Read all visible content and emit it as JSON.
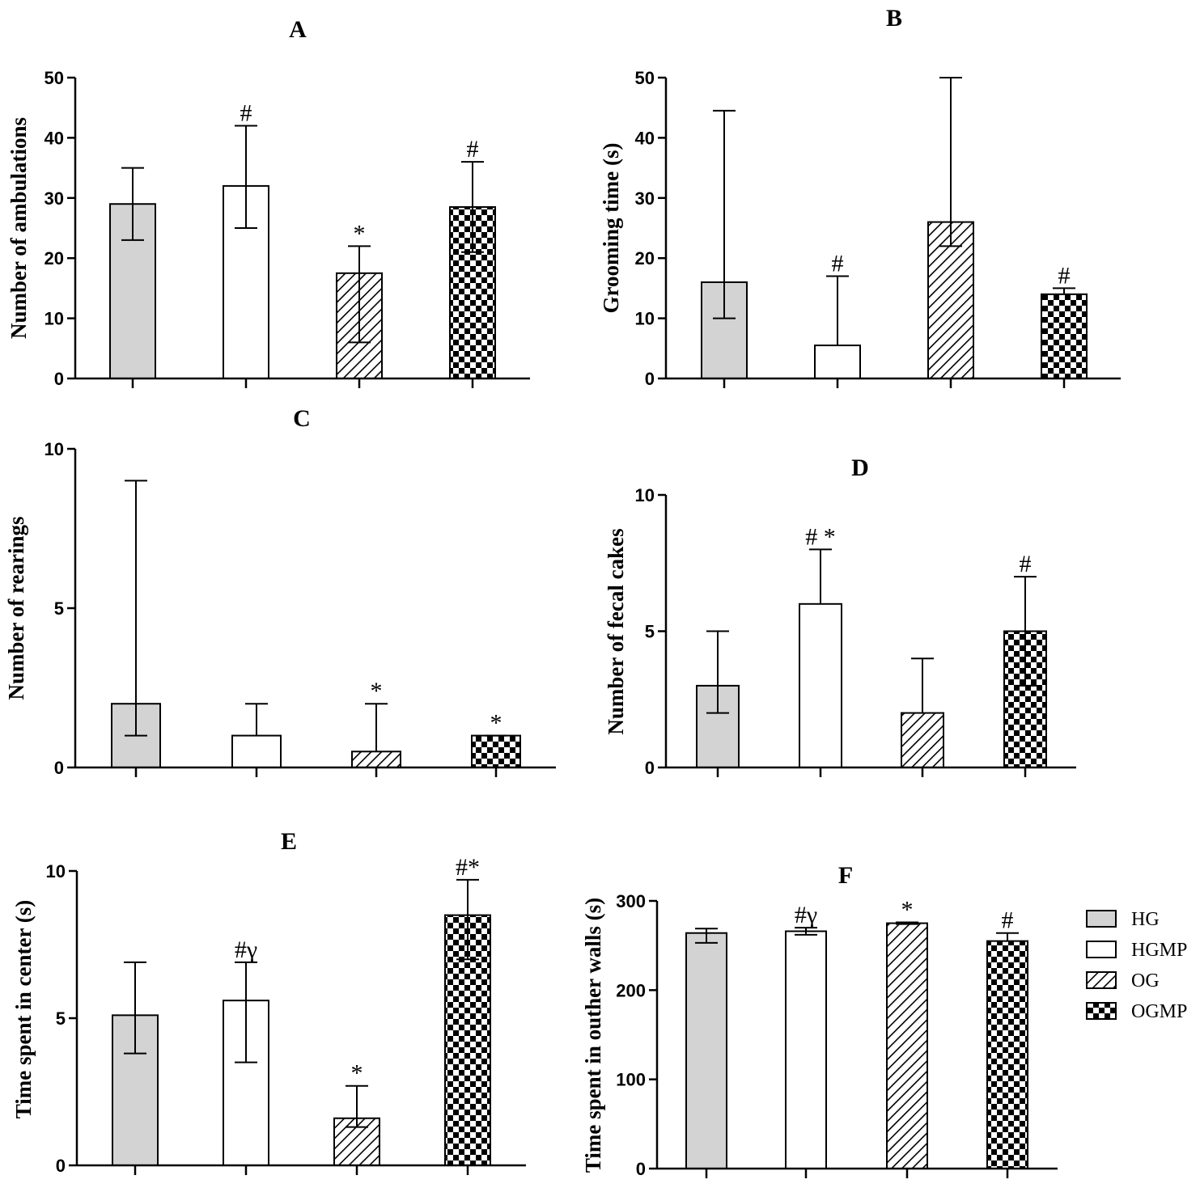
{
  "groups": [
    "HG",
    "HGMP",
    "OG",
    "OGMP"
  ],
  "fills": {
    "HG": "#d3d3d3",
    "HGMP": "#ffffff",
    "OG": "hatch",
    "OGMP": "checker"
  },
  "legend": {
    "items": [
      {
        "label": "HG",
        "fill": "HG"
      },
      {
        "label": "HGMP",
        "fill": "HGMP"
      },
      {
        "label": "OG",
        "fill": "OG"
      },
      {
        "label": "OGMP",
        "fill": "OGMP"
      }
    ]
  },
  "chart_data": [
    {
      "panel": "A",
      "type": "bar",
      "title": "A",
      "ylabel": "Number of ambulations",
      "ylim": [
        0,
        50
      ],
      "yticks": [
        "0",
        "10",
        "20",
        "30",
        "40",
        "50"
      ],
      "categories": [
        "HG",
        "HGMP",
        "OG",
        "OGMP"
      ],
      "values": [
        29,
        32,
        17.5,
        28.5
      ],
      "err_high": [
        35,
        42,
        22,
        36
      ],
      "err_low": [
        23,
        25,
        6,
        21
      ],
      "annotations": [
        "",
        "#",
        "*",
        "#"
      ]
    },
    {
      "panel": "B",
      "type": "bar",
      "title": "B",
      "ylabel": "Grooming time (s)",
      "ylim": [
        0,
        50
      ],
      "yticks": [
        "0",
        "10",
        "20",
        "30",
        "40",
        "50"
      ],
      "categories": [
        "HG",
        "HGMP",
        "OG",
        "OGMP"
      ],
      "values": [
        16,
        5.5,
        26,
        14
      ],
      "err_high": [
        44.5,
        17,
        50,
        15
      ],
      "err_low": [
        10,
        5.5,
        22,
        14
      ],
      "annotations": [
        "",
        "#",
        "",
        "#"
      ]
    },
    {
      "panel": "C",
      "type": "bar",
      "title": "C",
      "ylabel": "Number of rearings",
      "ylim": [
        0,
        10
      ],
      "yticks": [
        "0",
        "5",
        "10"
      ],
      "categories": [
        "HG",
        "HGMP",
        "OG",
        "OGMP"
      ],
      "values": [
        2,
        1,
        0.5,
        1
      ],
      "err_high": [
        9,
        2,
        2,
        1
      ],
      "err_low": [
        1,
        1,
        0.5,
        1
      ],
      "annotations": [
        "",
        "",
        "*",
        "*"
      ]
    },
    {
      "panel": "D",
      "type": "bar",
      "title": "D",
      "ylabel": "Number of fecal cakes",
      "ylim": [
        0,
        10
      ],
      "yticks": [
        "0",
        "5",
        "10"
      ],
      "categories": [
        "HG",
        "HGMP",
        "OG",
        "OGMP"
      ],
      "values": [
        3,
        6,
        2,
        5
      ],
      "err_high": [
        5,
        8,
        4,
        7
      ],
      "err_low": [
        2,
        6,
        2,
        3
      ],
      "annotations": [
        "",
        "# *",
        "",
        "#"
      ]
    },
    {
      "panel": "E",
      "type": "bar",
      "title": "E",
      "ylabel": "Time spent in center (s)",
      "ylim": [
        0,
        10
      ],
      "yticks": [
        "0",
        "5",
        "10"
      ],
      "categories": [
        "HG",
        "HGMP",
        "OG",
        "OGMP"
      ],
      "values": [
        5.1,
        5.6,
        1.6,
        8.5
      ],
      "err_high": [
        6.9,
        6.9,
        2.7,
        9.7
      ],
      "err_low": [
        3.8,
        3.5,
        1.3,
        7
      ],
      "annotations": [
        "",
        "#γ",
        "*",
        "#*"
      ]
    },
    {
      "panel": "F",
      "type": "bar",
      "title": "F",
      "ylabel": "Time spent in outher walls (s)",
      "ylim": [
        0,
        300
      ],
      "yticks": [
        "0",
        "100",
        "200",
        "300"
      ],
      "categories": [
        "HG",
        "HGMP",
        "OG",
        "OGMP"
      ],
      "values": [
        264,
        266,
        275,
        255
      ],
      "err_high": [
        269,
        270,
        276,
        264
      ],
      "err_low": [
        253,
        262,
        274,
        255
      ],
      "annotations": [
        "",
        "#γ",
        "*",
        "#"
      ]
    }
  ]
}
